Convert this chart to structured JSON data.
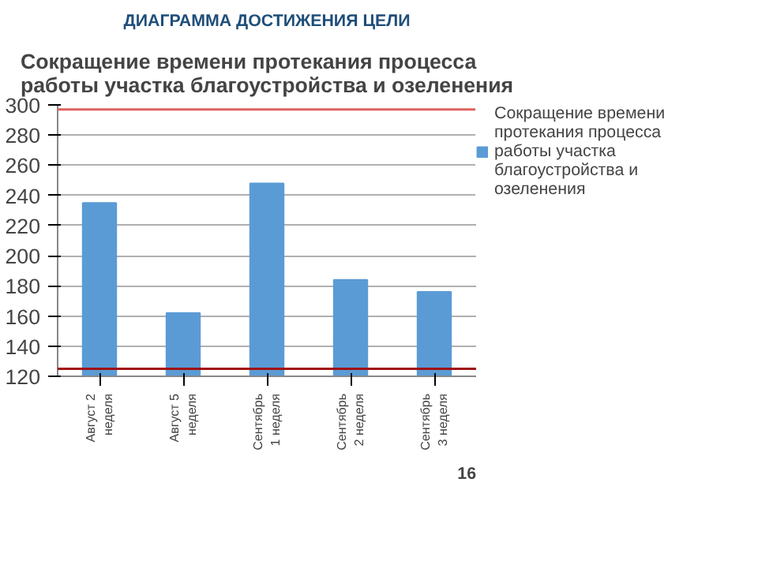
{
  "chart_data": {
    "type": "bar",
    "subtitle": "ДИАГРАММА ДОСТИЖЕНИЯ ЦЕЛИ",
    "title": "Сокращение времени  протекания процесса работы участка благоустройства и озеленения",
    "categories": [
      "Август 2 неделя",
      "Август 5 неделя",
      "Сентябрь 1 неделя",
      "Сентябрь 2 неделя",
      "Сентябрь 3 неделя"
    ],
    "series": [
      {
        "name": "Сокращение времени протекания процесса работы участка благоустройства и озеленения",
        "color": "#5b9bd5",
        "values": [
          235,
          162,
          248,
          184,
          176
        ]
      }
    ],
    "ylim": [
      120,
      300
    ],
    "yticks": [
      120,
      140,
      160,
      180,
      200,
      220,
      240,
      260,
      280,
      300
    ],
    "grid": "y",
    "legend": "right",
    "ref_lines": [
      {
        "axis": "y",
        "value": 297,
        "color": "#e06060"
      },
      {
        "axis": "y",
        "value": 125,
        "color": "#a01010"
      }
    ],
    "annotations": [
      "16"
    ]
  }
}
